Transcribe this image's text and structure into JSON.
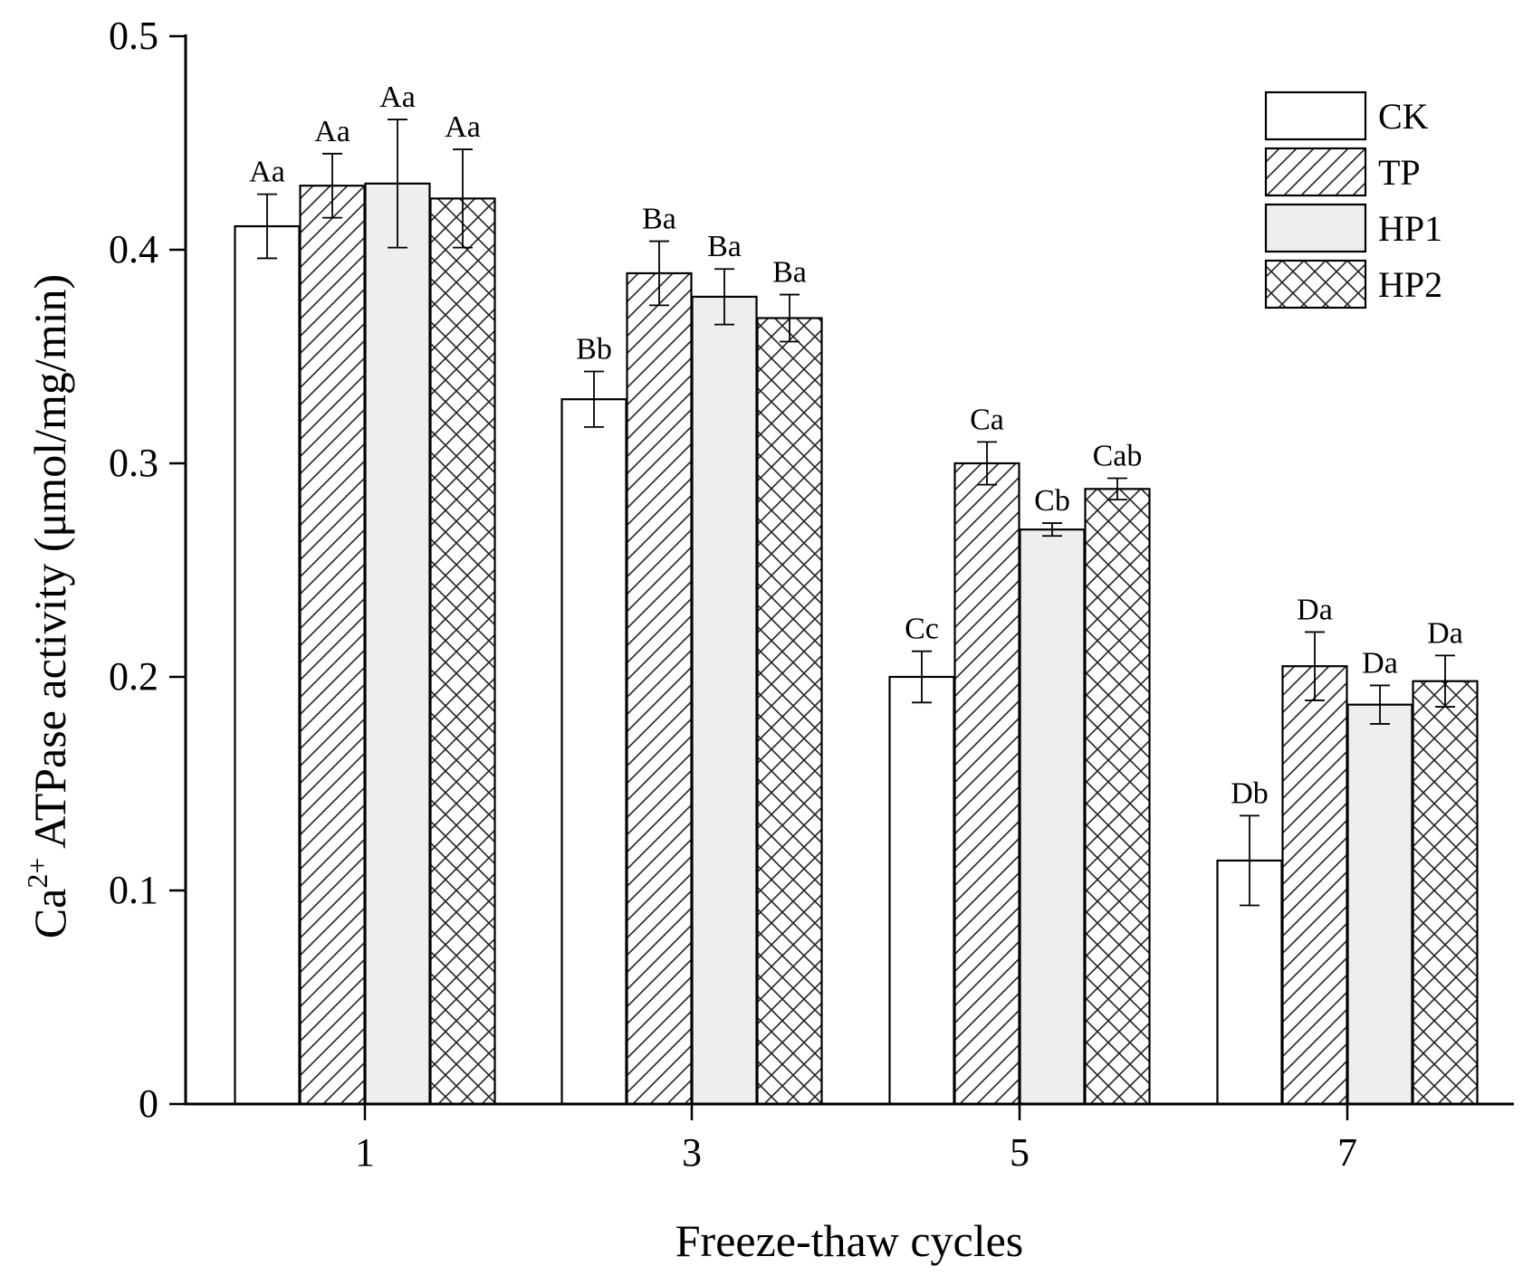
{
  "chart_data": {
    "type": "bar",
    "title": "",
    "xlabel": "Freeze-thaw cycles",
    "ylabel": {
      "base": "Ca",
      "superscript": "2+",
      "rest": " ATPase activity (μmol/mg/min)"
    },
    "ylim": [
      0,
      0.5
    ],
    "yticks": [
      "0",
      "0.1",
      "0.2",
      "0.3",
      "0.4",
      "0.5"
    ],
    "categories": [
      "1",
      "3",
      "5",
      "7"
    ],
    "legend_position": "top-right",
    "series": [
      {
        "name": "CK",
        "pattern": "none",
        "fill": "#ffffff",
        "values": [
          0.411,
          0.33,
          0.2,
          0.114
        ],
        "errors": [
          0.015,
          0.013,
          0.012,
          0.021
        ],
        "labels": [
          "Aa",
          "Bb",
          "Cc",
          "Db"
        ]
      },
      {
        "name": "TP",
        "pattern": "diagonal-hatch",
        "fill": "#ffffff",
        "values": [
          0.43,
          0.389,
          0.3,
          0.205
        ],
        "errors": [
          0.015,
          0.015,
          0.01,
          0.016
        ],
        "labels": [
          "Aa",
          "Ba",
          "Ca",
          "Da"
        ]
      },
      {
        "name": "HP1",
        "pattern": "solid",
        "fill": "#eeeeee",
        "values": [
          0.431,
          0.378,
          0.269,
          0.187
        ],
        "errors": [
          0.03,
          0.013,
          0.003,
          0.009
        ],
        "labels": [
          "Aa",
          "Ba",
          "Cb",
          "Da"
        ]
      },
      {
        "name": "HP2",
        "pattern": "cross-hatch",
        "fill": "#ffffff",
        "values": [
          0.424,
          0.368,
          0.288,
          0.198
        ],
        "errors": [
          0.023,
          0.011,
          0.005,
          0.012
        ],
        "labels": [
          "Aa",
          "Ba",
          "Cab",
          "Da"
        ]
      }
    ]
  }
}
